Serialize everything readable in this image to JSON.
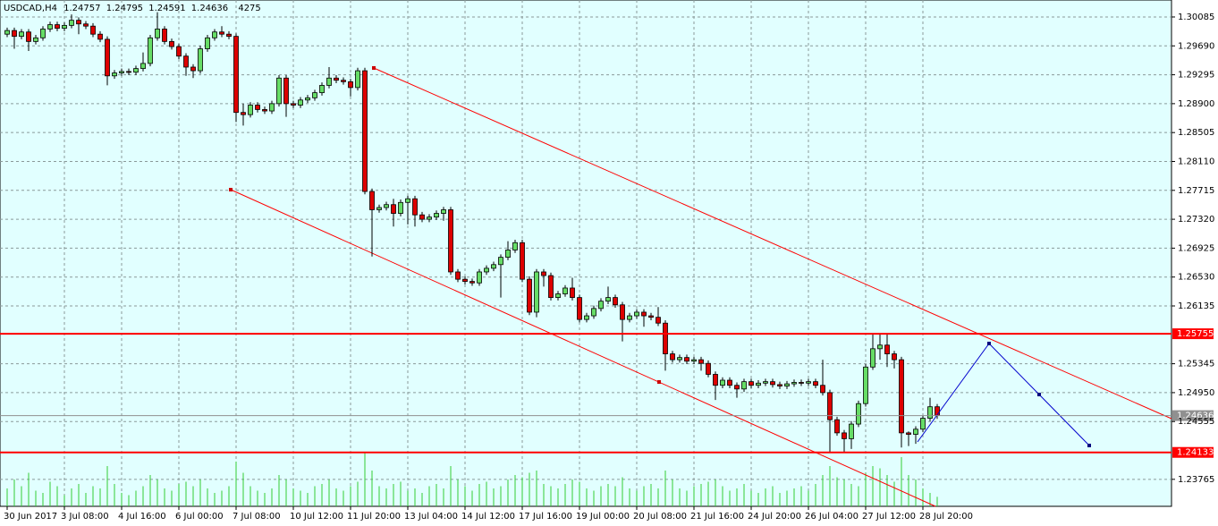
{
  "chart_data": {
    "type": "candlestick",
    "title": "USDCAD,H4",
    "categories": [
      "30 Jun 2017",
      null,
      null,
      null,
      null,
      null,
      null,
      null,
      "3 Jul 08:00",
      null,
      null,
      null,
      null,
      null,
      null,
      null,
      "4 Jul 16:00",
      null,
      null,
      null,
      null,
      null,
      null,
      null,
      "6 Jul 00:00",
      null,
      null,
      null,
      null,
      null,
      null,
      null,
      "7 Jul 08:00",
      null,
      null,
      null,
      null,
      null,
      null,
      null,
      "10 Jul 12:00",
      null,
      null,
      null,
      null,
      null,
      null,
      null,
      "11 Jul 20:00",
      null,
      null,
      null,
      null,
      null,
      null,
      null,
      "13 Jul 04:00",
      null,
      null,
      null,
      null,
      null,
      null,
      null,
      "14 Jul 12:00",
      null,
      null,
      null,
      null,
      null,
      null,
      null,
      "17 Jul 16:00",
      null,
      null,
      null,
      null,
      null,
      null,
      null,
      "19 Jul 00:00",
      null,
      null,
      null,
      null,
      null,
      null,
      null,
      "20 Jul 08:00",
      null,
      null,
      null,
      null,
      null,
      null,
      null,
      "21 Jul 16:00",
      null,
      null,
      null,
      null,
      null,
      null,
      null,
      "24 Jul 20:00",
      null,
      null,
      null,
      null,
      null,
      null,
      null,
      "26 Jul 04:00",
      null,
      null,
      null,
      null,
      null,
      null,
      null,
      "27 Jul 12:00",
      null,
      null,
      null,
      null,
      null,
      null,
      null,
      "28 Jul 20:00",
      null,
      null
    ],
    "open": [
      1.2985,
      1.299,
      1.2982,
      1.2988,
      1.2975,
      1.298,
      1.2992,
      1.2998,
      1.2993,
      1.2997,
      1.3004,
      1.2999,
      1.2996,
      1.2985,
      1.2978,
      1.2928,
      1.2932,
      1.2934,
      1.2933,
      1.2938,
      1.2945,
      1.298,
      1.2992,
      1.2975,
      1.2968,
      1.2955,
      1.294,
      1.2935,
      1.2965,
      1.298,
      1.2988,
      1.2985,
      1.2982,
      1.2878,
      1.2875,
      1.2888,
      1.2882,
      1.288,
      1.289,
      1.2925,
      1.289,
      1.2888,
      1.2895,
      1.2898,
      1.2905,
      1.2915,
      1.2925,
      1.2922,
      1.292,
      1.2912,
      1.2935,
      1.277,
      1.2745,
      1.2748,
      1.2752,
      1.274,
      1.2755,
      1.276,
      1.2738,
      1.2732,
      1.2735,
      1.274,
      1.2745,
      1.266,
      1.265,
      1.2647,
      1.2645,
      1.266,
      1.2665,
      1.267,
      1.268,
      1.269,
      1.27,
      1.265,
      1.2605,
      1.266,
      1.2655,
      1.2625,
      1.263,
      1.2638,
      1.2625,
      1.2595,
      1.26,
      1.261,
      1.262,
      1.2625,
      1.2615,
      1.2595,
      1.26,
      1.2605,
      1.26,
      1.2598,
      1.259,
      1.2548,
      1.254,
      1.2543,
      1.2538,
      1.254,
      1.2535,
      1.252,
      1.2505,
      1.2512,
      1.2505,
      1.25,
      1.251,
      1.2505,
      1.2508,
      1.251,
      1.2506,
      1.2504,
      1.2507,
      1.2509,
      1.2508,
      1.251,
      1.2505,
      1.2495,
      1.2458,
      1.244,
      1.2432,
      1.2452,
      1.248,
      1.253,
      1.2555,
      1.256,
      1.2548,
      1.254,
      1.244,
      1.2438,
      1.2445,
      1.246,
      1.24757
    ],
    "high": [
      1.2994,
      1.2994,
      1.2992,
      1.2992,
      1.2984,
      1.2996,
      1.3002,
      1.3002,
      1.3001,
      1.3012,
      1.3008,
      1.3003,
      1.3,
      1.2989,
      1.2982,
      1.2936,
      1.2938,
      1.2938,
      1.2942,
      1.296,
      1.2984,
      1.3015,
      1.2996,
      1.2979,
      1.2972,
      1.2959,
      1.2944,
      1.2969,
      1.2984,
      1.2992,
      1.2996,
      1.2989,
      1.2986,
      1.289,
      1.2892,
      1.2892,
      1.2886,
      1.2894,
      1.2929,
      1.2929,
      1.2894,
      1.2899,
      1.2902,
      1.2909,
      1.2919,
      1.294,
      1.2929,
      1.2926,
      1.2924,
      1.2939,
      1.2939,
      1.2774,
      1.2752,
      1.2756,
      1.276,
      1.2759,
      1.2764,
      1.2764,
      1.2742,
      1.2739,
      1.2744,
      1.2749,
      1.2749,
      1.2664,
      1.2654,
      1.2651,
      1.2664,
      1.2669,
      1.2674,
      1.2684,
      1.2702,
      1.2704,
      1.2704,
      1.2654,
      1.2664,
      1.2664,
      1.2659,
      1.2634,
      1.2642,
      1.2652,
      1.2629,
      1.2604,
      1.2614,
      1.2624,
      1.264,
      1.2629,
      1.2619,
      1.2604,
      1.2609,
      1.2609,
      1.2604,
      1.2612,
      1.2594,
      1.2552,
      1.2547,
      1.2547,
      1.2544,
      1.2544,
      1.2539,
      1.2524,
      1.2516,
      1.2516,
      1.2509,
      1.2514,
      1.2514,
      1.2512,
      1.2514,
      1.2514,
      1.251,
      1.2511,
      1.2513,
      1.2513,
      1.2514,
      1.2514,
      1.254,
      1.2499,
      1.2462,
      1.2444,
      1.2456,
      1.2484,
      1.2534,
      1.2575,
      1.2575,
      1.2575,
      1.2552,
      1.2544,
      1.2442,
      1.2449,
      1.2464,
      1.2488,
      1.24795
    ],
    "low": [
      1.2981,
      1.2965,
      1.2978,
      1.2962,
      1.2971,
      1.2976,
      1.2988,
      1.2989,
      1.2989,
      1.2993,
      1.2985,
      1.2992,
      1.2981,
      1.2974,
      1.2915,
      1.2924,
      1.2928,
      1.2929,
      1.2929,
      1.2934,
      1.2941,
      1.2976,
      1.2971,
      1.2964,
      1.2951,
      1.2928,
      1.2925,
      1.2931,
      1.2961,
      1.2976,
      1.2981,
      1.2978,
      1.2865,
      1.286,
      1.2871,
      1.2878,
      1.2876,
      1.2876,
      1.2886,
      1.2872,
      1.2884,
      1.2884,
      1.2891,
      1.2894,
      1.2901,
      1.2911,
      1.2918,
      1.2916,
      1.29,
      1.2908,
      1.2766,
      1.2681,
      1.2741,
      1.2744,
      1.2722,
      1.2736,
      1.2725,
      1.2722,
      1.2728,
      1.2728,
      1.2731,
      1.273,
      1.2656,
      1.2646,
      1.2643,
      1.2641,
      1.2641,
      1.2656,
      1.2661,
      1.2625,
      1.2676,
      1.2686,
      1.2646,
      1.2601,
      1.2598,
      1.264,
      1.2621,
      1.2621,
      1.2626,
      1.2621,
      1.2591,
      1.2591,
      1.2596,
      1.2606,
      1.2616,
      1.2611,
      1.2565,
      1.2591,
      1.2596,
      1.2585,
      1.2594,
      1.2586,
      1.2525,
      1.2536,
      1.2536,
      1.2534,
      1.2534,
      1.2525,
      1.2516,
      1.2485,
      1.2501,
      1.2501,
      1.2488,
      1.2496,
      1.2501,
      1.2501,
      1.2504,
      1.2502,
      1.25,
      1.25,
      1.2503,
      1.2504,
      1.2504,
      1.2501,
      1.2491,
      1.2413,
      1.2436,
      1.2413,
      1.2418,
      1.2448,
      1.2476,
      1.2526,
      1.254,
      1.253,
      1.2528,
      1.242,
      1.2422,
      1.2425,
      1.2441,
      1.2456,
      1.24591
    ],
    "close": [
      1.299,
      1.2982,
      1.2988,
      1.2975,
      1.298,
      1.2992,
      1.2998,
      1.2993,
      1.2997,
      1.3004,
      1.2999,
      1.2996,
      1.2985,
      1.2978,
      1.2928,
      1.2932,
      1.2934,
      1.2933,
      1.2938,
      1.2945,
      1.298,
      1.2992,
      1.2975,
      1.2968,
      1.2955,
      1.294,
      1.2935,
      1.2965,
      1.298,
      1.2988,
      1.2985,
      1.2982,
      1.2878,
      1.2875,
      1.2888,
      1.2882,
      1.288,
      1.289,
      1.2925,
      1.289,
      1.2888,
      1.2895,
      1.2898,
      1.2905,
      1.2915,
      1.2925,
      1.2922,
      1.292,
      1.2912,
      1.2935,
      1.277,
      1.2745,
      1.2748,
      1.2752,
      1.274,
      1.2755,
      1.276,
      1.2738,
      1.2732,
      1.2735,
      1.274,
      1.2745,
      1.266,
      1.265,
      1.2647,
      1.2645,
      1.266,
      1.2665,
      1.267,
      1.268,
      1.269,
      1.27,
      1.265,
      1.2605,
      1.266,
      1.2655,
      1.2625,
      1.263,
      1.2638,
      1.2625,
      1.2595,
      1.26,
      1.261,
      1.262,
      1.2625,
      1.2615,
      1.2595,
      1.26,
      1.2605,
      1.26,
      1.2598,
      1.259,
      1.2548,
      1.254,
      1.2543,
      1.2538,
      1.254,
      1.2535,
      1.252,
      1.2505,
      1.2512,
      1.2505,
      1.25,
      1.251,
      1.2505,
      1.2508,
      1.251,
      1.2506,
      1.2504,
      1.2507,
      1.2509,
      1.2508,
      1.251,
      1.2505,
      1.2495,
      1.2458,
      1.244,
      1.2432,
      1.2452,
      1.248,
      1.253,
      1.2555,
      1.256,
      1.2548,
      1.254,
      1.244,
      1.2438,
      1.2445,
      1.246,
      1.24757,
      1.24636
    ],
    "volume": [
      8000,
      12000,
      9000,
      15000,
      7000,
      6000,
      11000,
      9000,
      5000,
      8000,
      10000,
      6000,
      9000,
      8000,
      18000,
      10000,
      6000,
      5000,
      7000,
      9000,
      14000,
      12000,
      8000,
      7000,
      10000,
      11000,
      9000,
      12000,
      8000,
      6000,
      7000,
      9000,
      20000,
      15000,
      9000,
      7000,
      6000,
      8000,
      14000,
      12000,
      8000,
      7000,
      6000,
      9000,
      10000,
      12000,
      8000,
      7000,
      9000,
      11000,
      24000,
      16000,
      9000,
      8000,
      10000,
      11000,
      7000,
      8000,
      6000,
      9000,
      10000,
      8000,
      18000,
      12000,
      9000,
      7000,
      10000,
      11000,
      8000,
      9000,
      12000,
      14000,
      13000,
      15000,
      16000,
      10000,
      9000,
      8000,
      10000,
      12000,
      11000,
      8000,
      7000,
      9000,
      10000,
      9000,
      13000,
      8000,
      7000,
      9000,
      10000,
      8000,
      16000,
      12000,
      8000,
      7000,
      9000,
      10000,
      11000,
      12000,
      9000,
      7000,
      8000,
      10000,
      7000,
      6000,
      8000,
      9000,
      6000,
      7000,
      8000,
      9000,
      7000,
      10000,
      14000,
      18000,
      13000,
      12000,
      10000,
      9000,
      15000,
      18000,
      17000,
      14000,
      11000,
      22000,
      14000,
      12000,
      8000,
      6000,
      4275
    ],
    "up_color": "#66dd66",
    "down_color": "#dd0000",
    "volume_color": "#33cc33",
    "ylim": [
      1.23396,
      1.30317
    ],
    "yticks": [
      1.30085,
      {
        "value": 1.2969,
        "label": "1.29690"
      },
      1.29295,
      {
        "value": 1.289,
        "label": "1.28900"
      },
      1.28505,
      {
        "value": 1.2811,
        "label": "1.28110"
      },
      1.27715,
      {
        "value": 1.2732,
        "label": "1.27320"
      },
      1.26925,
      {
        "value": 1.2653,
        "label": "1.26530"
      },
      1.26135,
      1.25345,
      {
        "value": 1.2495,
        "label": "1.24950"
      },
      1.24555,
      1.23765
    ],
    "levels": [
      {
        "value": 1.25755,
        "color": "#ff0000"
      },
      {
        "value": 1.24133,
        "color": "#ff0000"
      }
    ],
    "grid": true
  }
}
